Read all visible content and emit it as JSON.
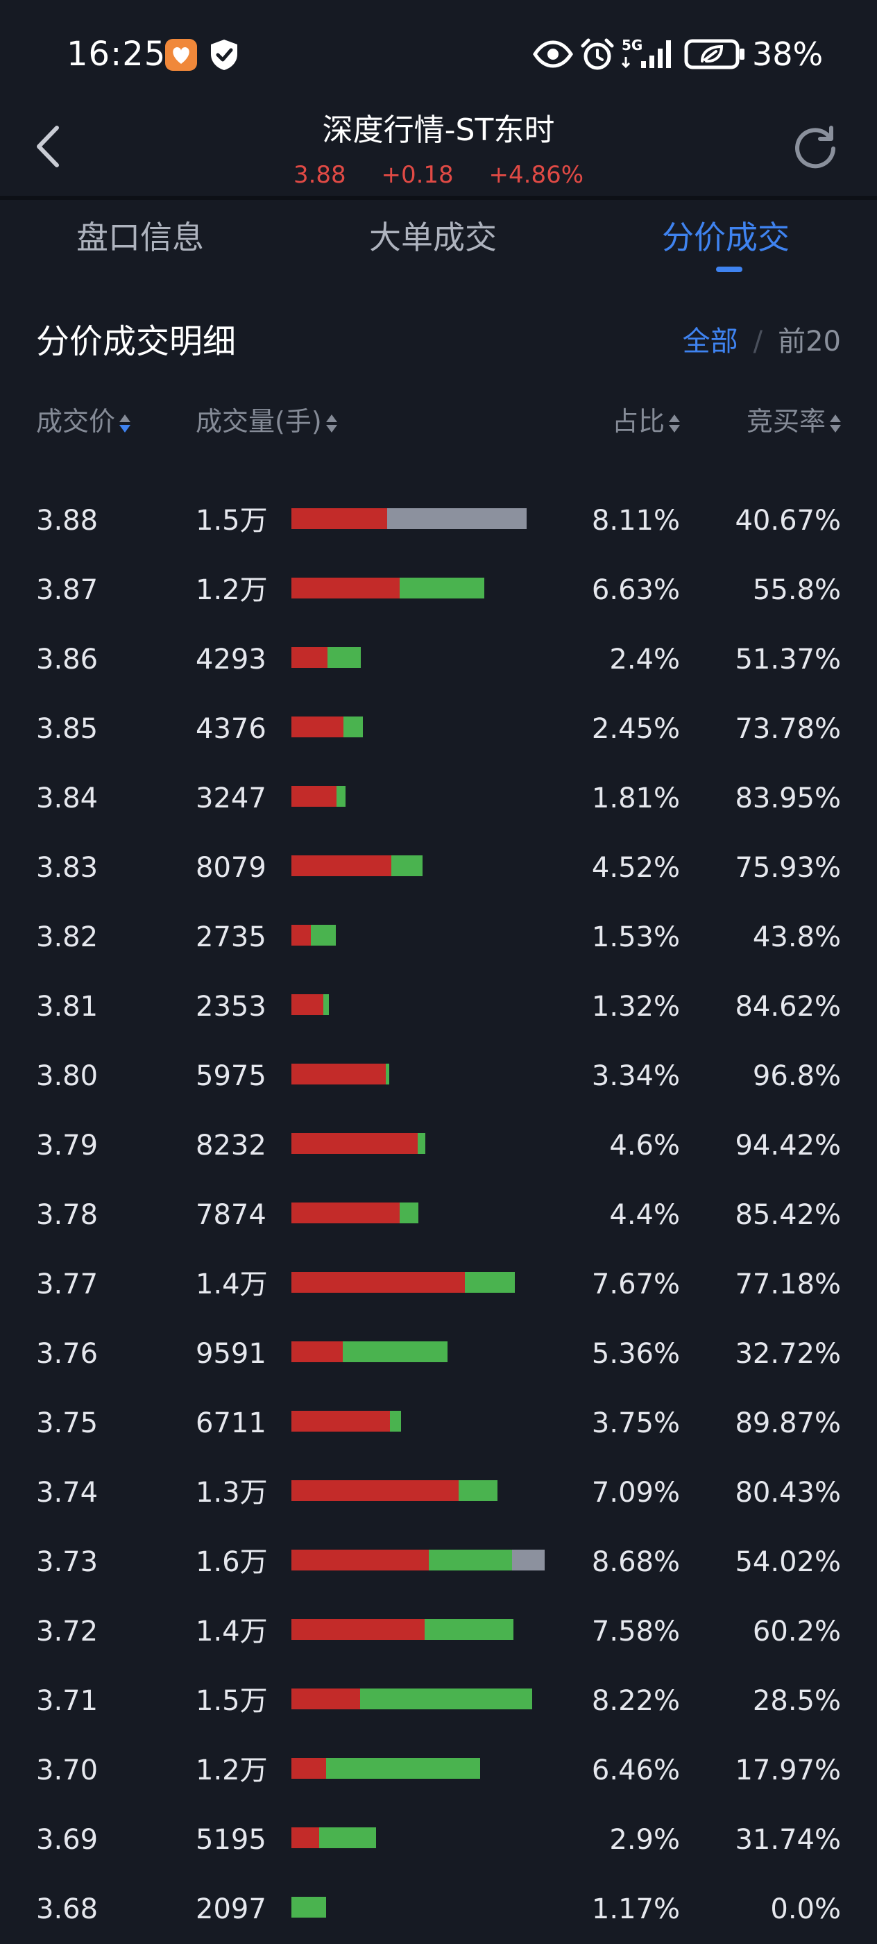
{
  "status_bar": {
    "time": "16:25",
    "network": "5G",
    "battery": "38%",
    "icons": [
      "app-badge-icon",
      "shield-icon",
      "eye-icon",
      "alarm-icon",
      "signal-icon",
      "battery-icon"
    ]
  },
  "header": {
    "title": "深度行情-ST东时",
    "price": "3.88",
    "change": "+0.18",
    "change_pct": "+4.86%"
  },
  "tabs": [
    {
      "label": "盘口信息",
      "active": false
    },
    {
      "label": "大单成交",
      "active": false
    },
    {
      "label": "分价成交",
      "active": true
    }
  ],
  "section": {
    "title": "分价成交明细",
    "filter_all": "全部",
    "filter_sep": "/",
    "filter_top20": "前20"
  },
  "columns": {
    "price": "成交价",
    "volume": "成交量(手)",
    "share": "占比",
    "rate": "竞买率"
  },
  "colors": {
    "background": "#161a23",
    "accent": "#3f83f0",
    "up_red": "#e04a45",
    "bar_red": "#c32b29",
    "bar_green": "#4ab34f",
    "bar_gray": "#8c919e"
  },
  "rows": [
    {
      "price": "3.88",
      "volume": "1.5万",
      "share": "8.11%",
      "rate": "40.67%",
      "bar": {
        "red": 0.23,
        "green": 0,
        "gray": 0.335
      }
    },
    {
      "price": "3.87",
      "volume": "1.2万",
      "share": "6.63%",
      "rate": "55.8%",
      "bar": {
        "red": 0.26,
        "green": 0.203,
        "gray": 0
      }
    },
    {
      "price": "3.86",
      "volume": "4293",
      "share": "2.4%",
      "rate": "51.37%",
      "bar": {
        "red": 0.086,
        "green": 0.08,
        "gray": 0
      }
    },
    {
      "price": "3.85",
      "volume": "4376",
      "share": "2.45%",
      "rate": "73.78%",
      "bar": {
        "red": 0.125,
        "green": 0.046,
        "gray": 0
      }
    },
    {
      "price": "3.84",
      "volume": "3247",
      "share": "1.81%",
      "rate": "83.95%",
      "bar": {
        "red": 0.109,
        "green": 0.021,
        "gray": 0
      }
    },
    {
      "price": "3.83",
      "volume": "8079",
      "share": "4.52%",
      "rate": "75.93%",
      "bar": {
        "red": 0.24,
        "green": 0.075,
        "gray": 0
      }
    },
    {
      "price": "3.82",
      "volume": "2735",
      "share": "1.53%",
      "rate": "43.8%",
      "bar": {
        "red": 0.046,
        "green": 0.06,
        "gray": 0
      }
    },
    {
      "price": "3.81",
      "volume": "2353",
      "share": "1.32%",
      "rate": "84.62%",
      "bar": {
        "red": 0.076,
        "green": 0.014,
        "gray": 0
      }
    },
    {
      "price": "3.80",
      "volume": "5975",
      "share": "3.34%",
      "rate": "96.8%",
      "bar": {
        "red": 0.226,
        "green": 0.008,
        "gray": 0
      }
    },
    {
      "price": "3.79",
      "volume": "8232",
      "share": "4.6%",
      "rate": "94.42%",
      "bar": {
        "red": 0.303,
        "green": 0.018,
        "gray": 0
      }
    },
    {
      "price": "3.78",
      "volume": "7874",
      "share": "4.4%",
      "rate": "85.42%",
      "bar": {
        "red": 0.26,
        "green": 0.045,
        "gray": 0
      }
    },
    {
      "price": "3.77",
      "volume": "1.4万",
      "share": "7.67%",
      "rate": "77.18%",
      "bar": {
        "red": 0.416,
        "green": 0.12,
        "gray": 0
      }
    },
    {
      "price": "3.76",
      "volume": "9591",
      "share": "5.36%",
      "rate": "32.72%",
      "bar": {
        "red": 0.123,
        "green": 0.252,
        "gray": 0
      }
    },
    {
      "price": "3.75",
      "volume": "6711",
      "share": "3.75%",
      "rate": "89.87%",
      "bar": {
        "red": 0.236,
        "green": 0.027,
        "gray": 0
      }
    },
    {
      "price": "3.74",
      "volume": "1.3万",
      "share": "7.09%",
      "rate": "80.43%",
      "bar": {
        "red": 0.402,
        "green": 0.094,
        "gray": 0
      }
    },
    {
      "price": "3.73",
      "volume": "1.6万",
      "share": "8.68%",
      "rate": "54.02%",
      "bar": {
        "red": 0.33,
        "green": 0.2,
        "gray": 0.078
      }
    },
    {
      "price": "3.72",
      "volume": "1.4万",
      "share": "7.58%",
      "rate": "60.2%",
      "bar": {
        "red": 0.32,
        "green": 0.213,
        "gray": 0
      }
    },
    {
      "price": "3.71",
      "volume": "1.5万",
      "share": "8.22%",
      "rate": "28.5%",
      "bar": {
        "red": 0.165,
        "green": 0.413,
        "gray": 0
      }
    },
    {
      "price": "3.70",
      "volume": "1.2万",
      "share": "6.46%",
      "rate": "17.97%",
      "bar": {
        "red": 0.083,
        "green": 0.37,
        "gray": 0
      }
    },
    {
      "price": "3.69",
      "volume": "5195",
      "share": "2.9%",
      "rate": "31.74%",
      "bar": {
        "red": 0.066,
        "green": 0.137,
        "gray": 0
      }
    },
    {
      "price": "3.68",
      "volume": "2097",
      "share": "1.17%",
      "rate": "0.0%",
      "bar": {
        "red": 0,
        "green": 0.083,
        "gray": 0
      }
    }
  ]
}
